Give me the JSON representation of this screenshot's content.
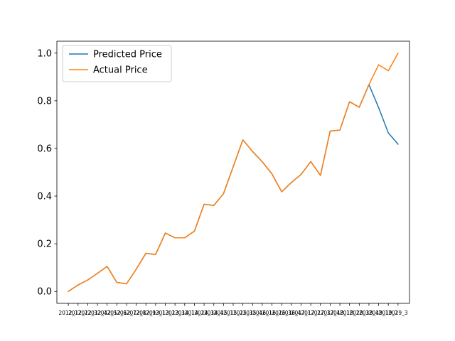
{
  "chart_data": {
    "type": "line",
    "title": "",
    "xlabel": "",
    "ylabel": "",
    "x": [
      "2012_1",
      "2012_2",
      "2012_3",
      "2012_4",
      "2012_5",
      "2012_6",
      "2012_7",
      "2012_8",
      "2012_9",
      "2013_1",
      "2013_2",
      "2013_3",
      "2014_1",
      "2014_2",
      "2014_3",
      "2014_4",
      "2015_1",
      "2015_2",
      "2015_3",
      "2015_4",
      "2016_1",
      "2016_2",
      "2016_3",
      "2016_4",
      "2017_1",
      "2017_2",
      "2017_3",
      "2017_4",
      "2018_1",
      "2018_2",
      "2018_3",
      "2018_4",
      "2019_1",
      "2019_2",
      "2019_3"
    ],
    "ylim": [
      -0.05,
      1.05
    ],
    "yticks": [
      "0.0",
      "0.2",
      "0.4",
      "0.6",
      "0.8",
      "1.0"
    ],
    "series": [
      {
        "name": "Predicted Price",
        "color": "#1f77b4",
        "values": [
          0.0,
          0.027,
          0.048,
          0.076,
          0.105,
          0.038,
          0.032,
          0.093,
          0.16,
          0.155,
          0.245,
          0.225,
          0.225,
          0.253,
          0.366,
          0.361,
          0.41,
          0.523,
          0.636,
          0.587,
          0.544,
          0.493,
          0.418,
          0.457,
          0.491,
          0.545,
          0.487,
          0.673,
          0.677,
          0.796,
          0.773,
          0.868,
          0.771,
          0.665,
          0.618
        ]
      },
      {
        "name": "Actual Price",
        "color": "#ff7f0e",
        "values": [
          0.0,
          0.027,
          0.048,
          0.076,
          0.105,
          0.038,
          0.032,
          0.093,
          0.16,
          0.155,
          0.245,
          0.225,
          0.225,
          0.253,
          0.366,
          0.361,
          0.41,
          0.523,
          0.636,
          0.587,
          0.544,
          0.493,
          0.418,
          0.457,
          0.491,
          0.545,
          0.487,
          0.673,
          0.677,
          0.796,
          0.773,
          0.868,
          0.951,
          0.926,
          1.0
        ]
      }
    ],
    "legend_position": "top-left",
    "grid": false
  }
}
